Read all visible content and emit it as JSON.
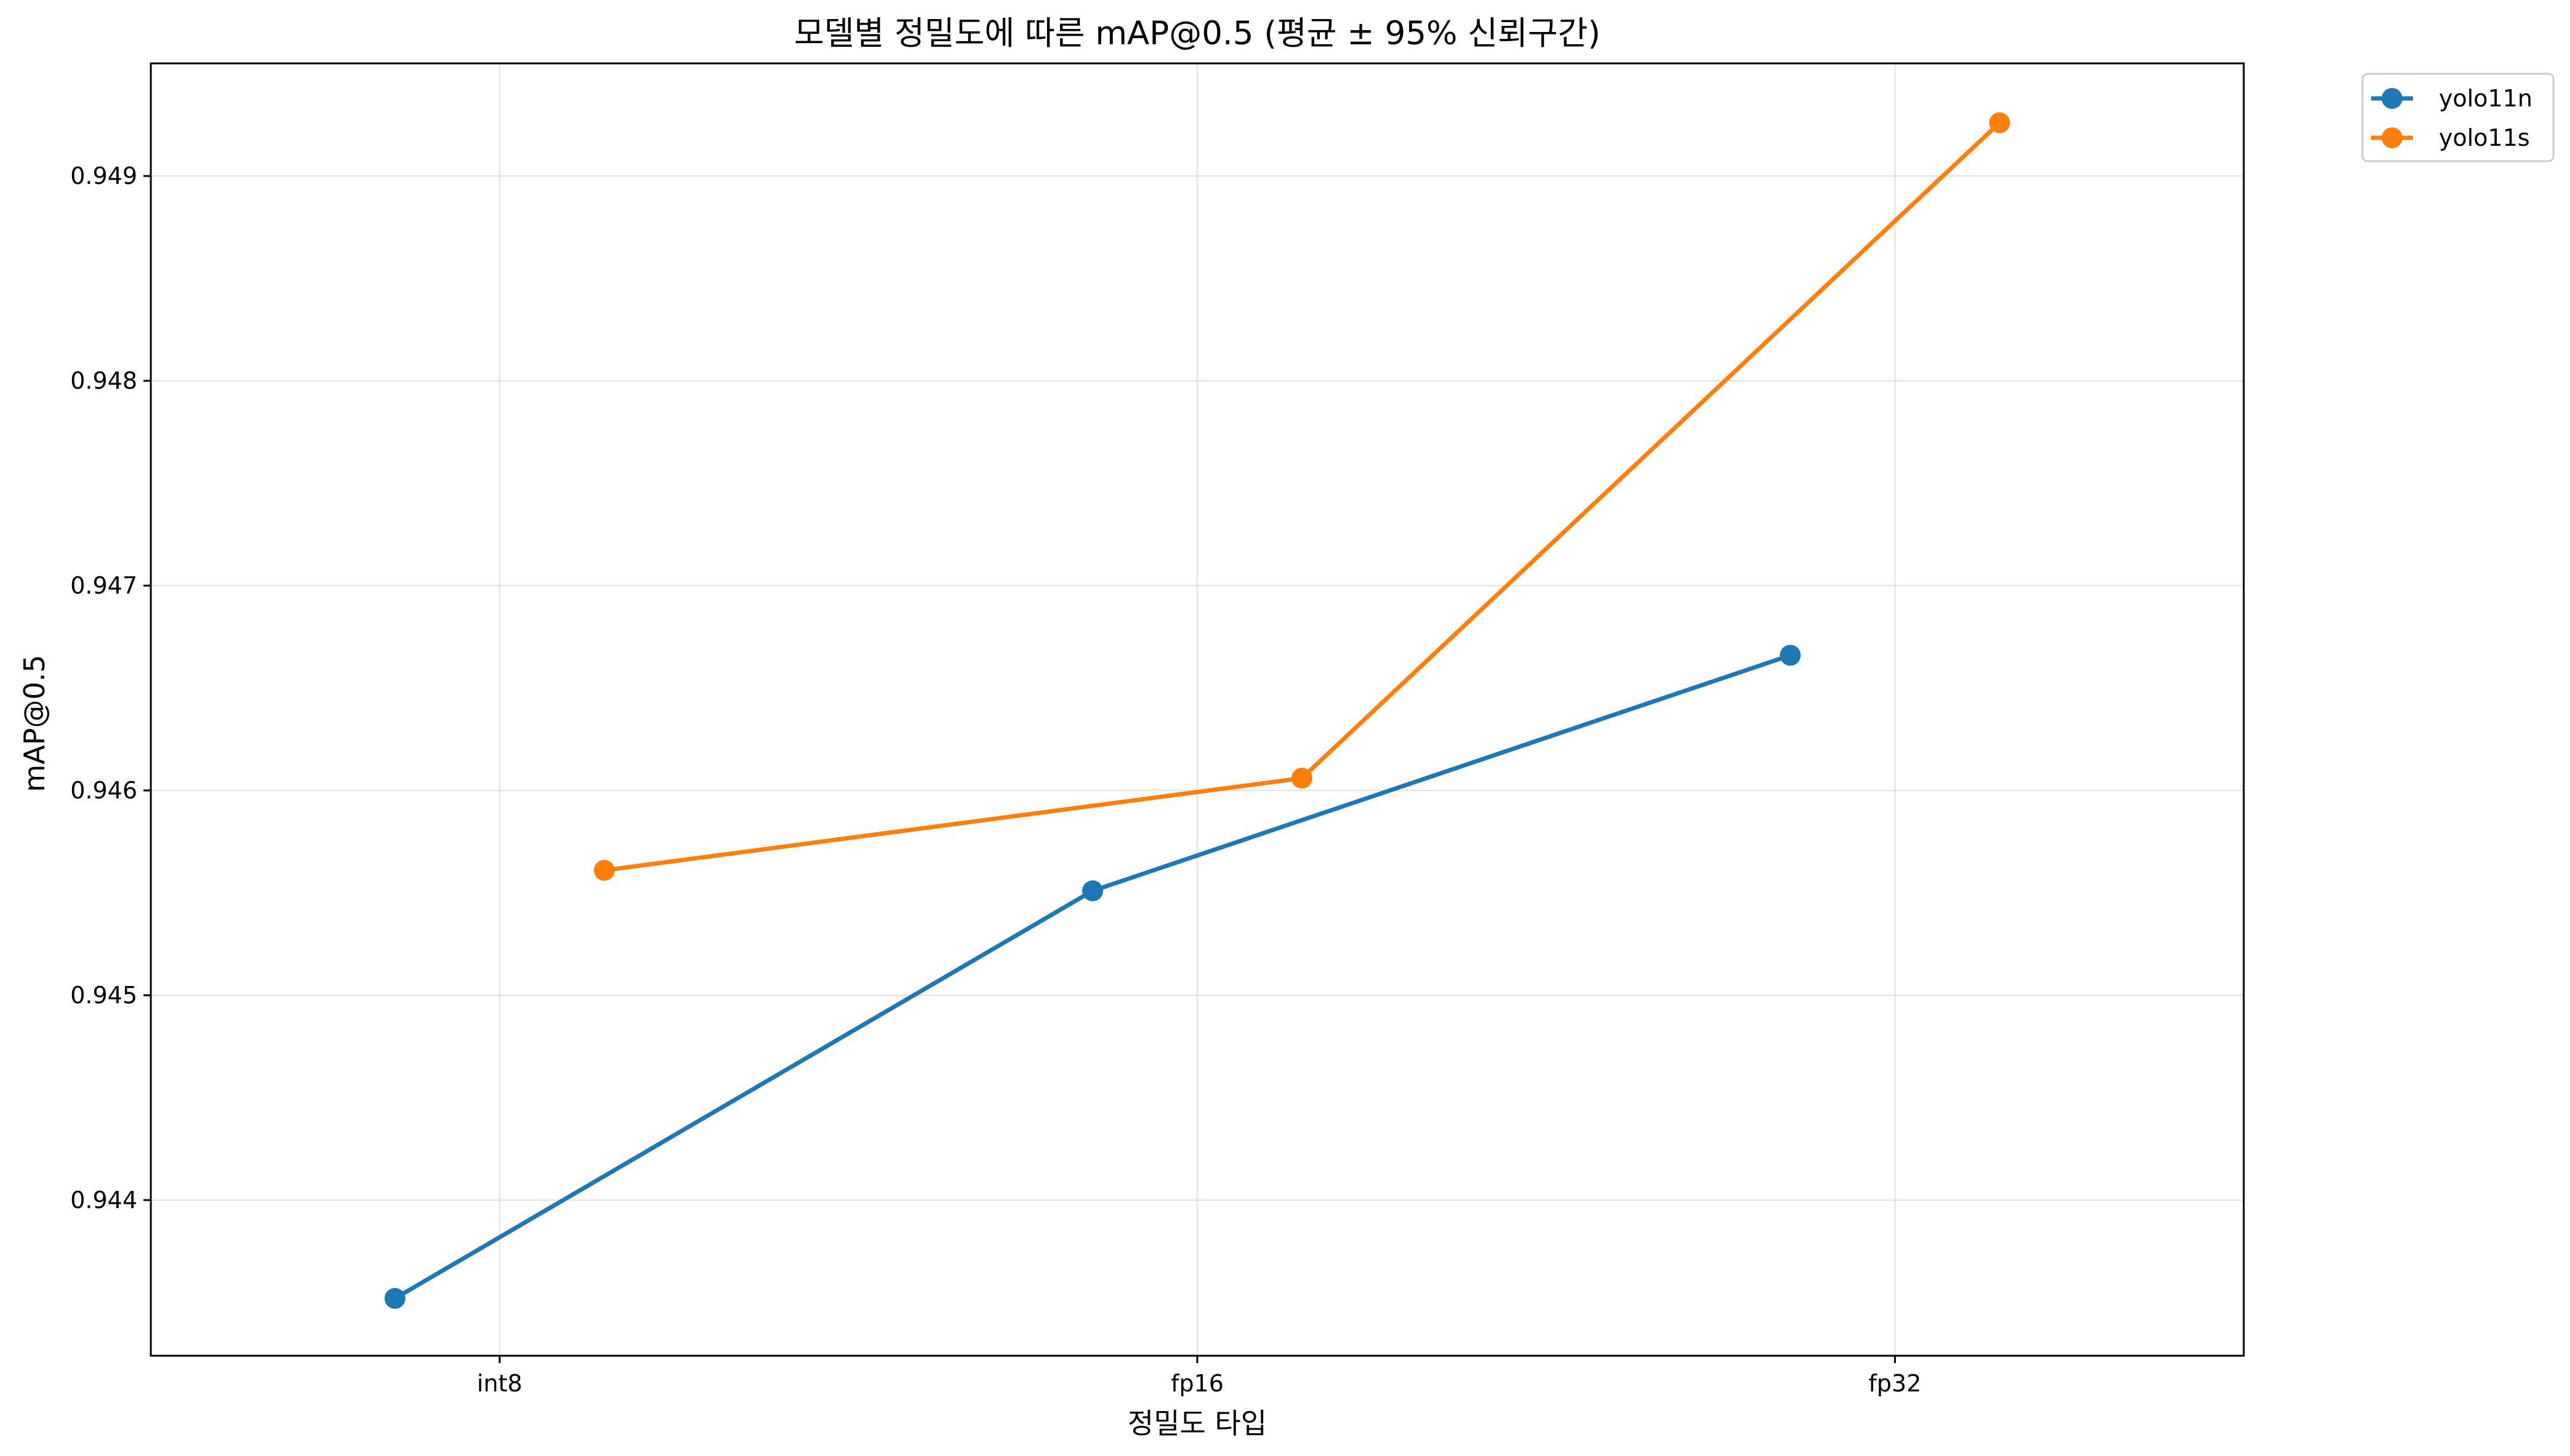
{
  "chart_data": {
    "type": "line",
    "title": "모델별 정밀도에 따른 mAP@0.5 (평균 ± 95% 신뢰구간)",
    "xlabel": "정밀도 타입",
    "ylabel": "mAP@0.5",
    "categories": [
      "int8",
      "fp16",
      "fp32"
    ],
    "ylim": [
      0.94324,
      0.94955
    ],
    "yticks": [
      0.944,
      0.945,
      0.946,
      0.947,
      0.948,
      0.949
    ],
    "ytick_labels": [
      "0.944",
      "0.945",
      "0.946",
      "0.947",
      "0.948",
      "0.949"
    ],
    "grid": true,
    "legend_position": "outside top-right",
    "series": [
      {
        "name": "yolo11n",
        "color": "#1f77b4",
        "offset": -0.15,
        "values": [
          0.94352,
          0.94551,
          0.94666
        ]
      },
      {
        "name": "yolo11s",
        "color": "#ff7f0e",
        "offset": 0.15,
        "values": [
          0.94561,
          0.94606,
          0.94926
        ]
      }
    ]
  }
}
